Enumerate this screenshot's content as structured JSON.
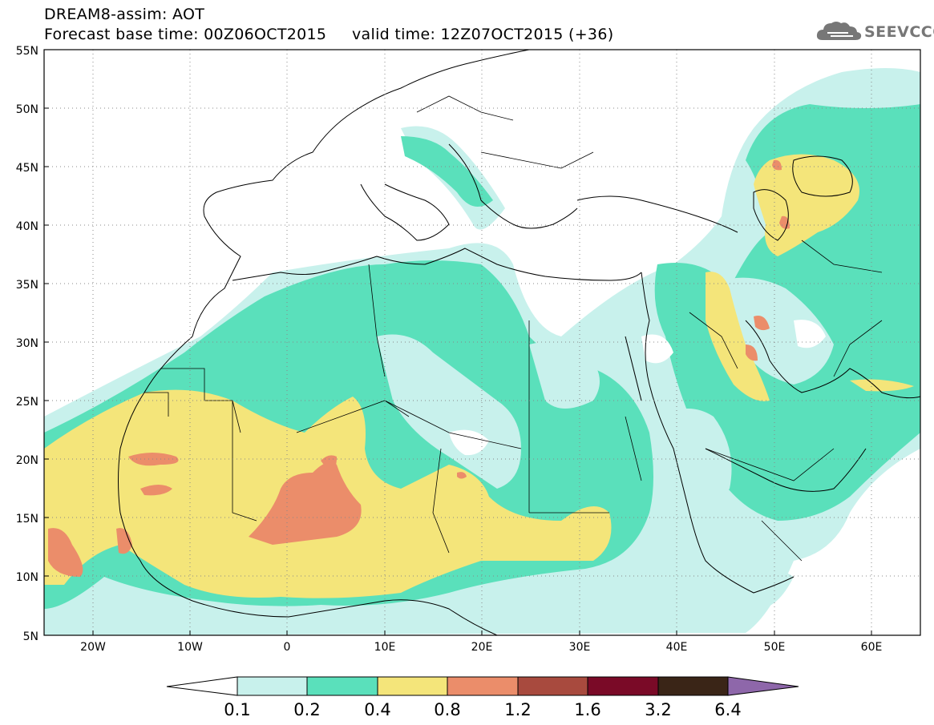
{
  "header": {
    "title": "DREAM8-assim: AOT",
    "base_time_label": "Forecast base time: 00Z06OCT2015",
    "valid_time_label": "valid time: 12Z07OCT2015 (+36)",
    "logo_text": "SEEVCCC",
    "logo_icon": "cloud-icon"
  },
  "map": {
    "lat_labels": [
      "55N",
      "50N",
      "45N",
      "40N",
      "35N",
      "30N",
      "25N",
      "20N",
      "15N",
      "10N",
      "5N"
    ],
    "lon_labels": [
      "20W",
      "10W",
      "0",
      "10E",
      "20E",
      "30E",
      "40E",
      "50E",
      "60E"
    ],
    "lat_range": [
      5,
      55
    ],
    "lon_range": [
      -25,
      65
    ],
    "grid": "dotted"
  },
  "legend": {
    "labels": [
      "0.1",
      "0.2",
      "0.4",
      "0.8",
      "1.2",
      "1.6",
      "3.2",
      "6.4"
    ],
    "colors": [
      "#ffffff",
      "#c8f1ec",
      "#5ae0bb",
      "#f4e57a",
      "#eb8d6a",
      "#a84a3e",
      "#7a0a27",
      "#3a2517",
      "#8e67aa"
    ]
  },
  "colors": {
    "c1": "#c8f1ec",
    "c2": "#5ae0bb",
    "c3": "#f4e57a",
    "c4": "#eb8d6a",
    "coast": "#000000"
  }
}
